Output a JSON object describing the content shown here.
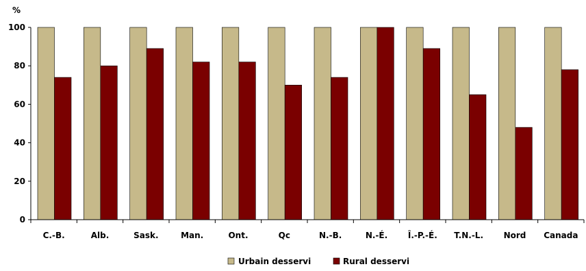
{
  "chart_data": {
    "type": "bar",
    "unit_label": "%",
    "categories": [
      "C.-B.",
      "Alb.",
      "Sask.",
      "Man.",
      "Ont.",
      "Qc",
      "N.-B.",
      "N.-É.",
      "Î.-P.-É.",
      "T.N.-L.",
      "Nord",
      "Canada"
    ],
    "series": [
      {
        "name": "Urbain desservi",
        "color": "#c6b98a",
        "values": [
          100,
          100,
          100,
          100,
          100,
          100,
          100,
          100,
          100,
          100,
          100,
          100
        ]
      },
      {
        "name": "Rural desservi",
        "color": "#7a0000",
        "values": [
          74,
          80,
          89,
          82,
          82,
          70,
          74,
          100,
          89,
          65,
          48,
          78
        ]
      }
    ],
    "ylim": [
      0,
      100
    ],
    "yticks": [
      "0",
      "20",
      "40",
      "60",
      "80",
      "100"
    ],
    "grid": false,
    "legend_position": "bottom-center"
  }
}
